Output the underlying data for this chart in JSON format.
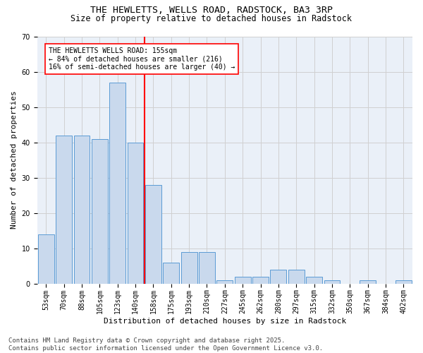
{
  "title1": "THE HEWLETTS, WELLS ROAD, RADSTOCK, BA3 3RP",
  "title2": "Size of property relative to detached houses in Radstock",
  "xlabel": "Distribution of detached houses by size in Radstock",
  "ylabel": "Number of detached properties",
  "categories": [
    "53sqm",
    "70sqm",
    "88sqm",
    "105sqm",
    "123sqm",
    "140sqm",
    "158sqm",
    "175sqm",
    "193sqm",
    "210sqm",
    "227sqm",
    "245sqm",
    "262sqm",
    "280sqm",
    "297sqm",
    "315sqm",
    "332sqm",
    "350sqm",
    "367sqm",
    "384sqm",
    "402sqm"
  ],
  "values": [
    14,
    42,
    42,
    41,
    57,
    40,
    28,
    6,
    9,
    9,
    1,
    2,
    2,
    4,
    4,
    2,
    1,
    0,
    1,
    0,
    1
  ],
  "bar_color": "#c9d9ed",
  "bar_edge_color": "#5b9bd5",
  "vline_index": 6,
  "vline_color": "red",
  "annotation_text": "THE HEWLETTS WELLS ROAD: 155sqm\n← 84% of detached houses are smaller (216)\n16% of semi-detached houses are larger (40) →",
  "ylim": [
    0,
    70
  ],
  "yticks": [
    0,
    10,
    20,
    30,
    40,
    50,
    60,
    70
  ],
  "grid_color": "#d0d0d0",
  "background_color": "#eaf0f8",
  "footnote": "Contains HM Land Registry data © Crown copyright and database right 2025.\nContains public sector information licensed under the Open Government Licence v3.0.",
  "title_fontsize": 9.5,
  "subtitle_fontsize": 8.5,
  "axis_label_fontsize": 8,
  "tick_fontsize": 7,
  "annotation_fontsize": 7,
  "footnote_fontsize": 6.5
}
